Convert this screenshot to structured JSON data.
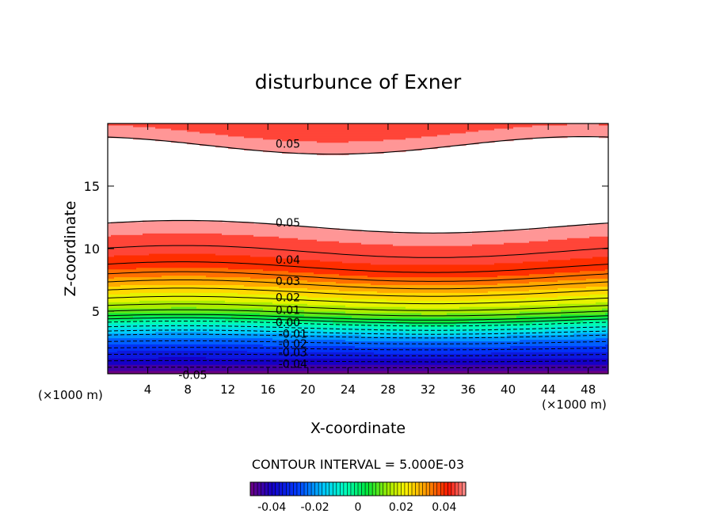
{
  "chart_data": {
    "type": "heatmap",
    "title": "disturbunce of Exner",
    "xlabel": "X-coordinate",
    "ylabel": "Z-coordinate",
    "x_unit_left": "(×1000 m)",
    "x_unit_right": "(×1000 m)",
    "xlim": [
      0,
      50
    ],
    "ylim": [
      0,
      20
    ],
    "x_ticks": [
      "4",
      "8",
      "12",
      "16",
      "20",
      "24",
      "28",
      "32",
      "36",
      "40",
      "44",
      "48"
    ],
    "y_ticks": [
      "5",
      "10",
      "15"
    ],
    "contour_interval_label": "CONTOUR INTERVAL = 5.000E-03",
    "colorbar_ticks": [
      "-0.04",
      "-0.02",
      "0",
      "0.02",
      "0.04"
    ],
    "colorbar_range": [
      -0.05,
      0.05
    ],
    "contour_labels": [
      {
        "text": "0.05",
        "x": 18,
        "z": 18.4
      },
      {
        "text": "0.05",
        "x": 18,
        "z": 12.1
      },
      {
        "text": "0.04",
        "x": 18,
        "z": 9.1
      },
      {
        "text": "0.03",
        "x": 18,
        "z": 7.4
      },
      {
        "text": "0.02",
        "x": 18,
        "z": 6.1
      },
      {
        "text": "0.01",
        "x": 18,
        "z": 5.1
      },
      {
        "text": "0.00",
        "x": 18,
        "z": 4.1
      },
      {
        "text": "-0.01",
        "x": 18.5,
        "z": 3.2
      },
      {
        "text": "-0.02",
        "x": 18.5,
        "z": 2.4
      },
      {
        "text": "-0.03",
        "x": 18.5,
        "z": 1.7
      },
      {
        "text": "-0.04",
        "x": 18.5,
        "z": 0.8
      },
      {
        "text": "-0.05",
        "x": 8.5,
        "z": -0.1
      }
    ],
    "field_profile": {
      "z": [
        0,
        0.5,
        1,
        1.5,
        2,
        2.5,
        3,
        3.5,
        4,
        4.5,
        5,
        5.5,
        6,
        6.5,
        7,
        7.5,
        8,
        8.5,
        9,
        9.5,
        10,
        10.5,
        11,
        11.5,
        12,
        18,
        18.5,
        19,
        20
      ],
      "value": [
        -0.05,
        -0.045,
        -0.04,
        -0.035,
        -0.03,
        -0.025,
        -0.02,
        -0.012,
        -0.005,
        0.005,
        0.012,
        0.017,
        0.021,
        0.025,
        0.029,
        0.033,
        0.037,
        0.04,
        0.042,
        0.044,
        0.046,
        0.047,
        0.048,
        0.049,
        0.05,
        0.05,
        0.049,
        0.048,
        0.046
      ]
    }
  }
}
